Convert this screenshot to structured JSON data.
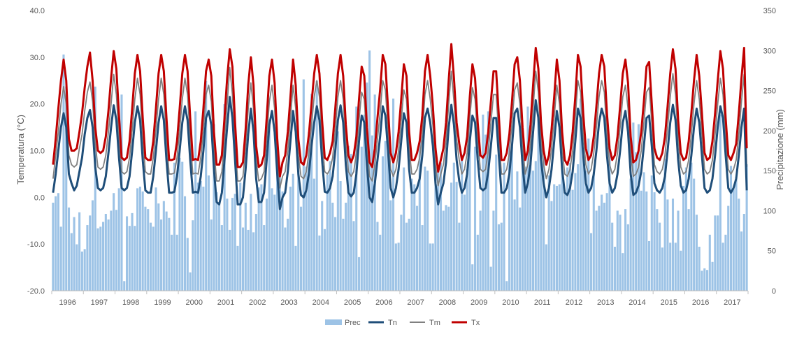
{
  "chart_data": {
    "type": "bar+line",
    "title": "",
    "y_left_label": "Temperatura (°C)",
    "y_right_label": "Precipitazione (mm)",
    "y_left_ticks": [
      "40.0",
      "30.0",
      "20.0",
      "10.0",
      "0.0",
      "-10.0",
      "-20.0"
    ],
    "y_left_range": [
      -20,
      40
    ],
    "y_right_ticks": [
      "350",
      "300",
      "250",
      "200",
      "150",
      "100",
      "50",
      "0"
    ],
    "y_right_range": [
      0,
      350
    ],
    "years": [
      "1996",
      "1997",
      "1998",
      "1999",
      "2000",
      "2001",
      "2002",
      "2003",
      "2004",
      "2005",
      "2006",
      "2007",
      "2008",
      "2009",
      "2010",
      "2011",
      "2012",
      "2013",
      "2014",
      "2015",
      "2016",
      "2017"
    ],
    "grid": false,
    "legend_position": "bottom",
    "legend": [
      {
        "label": "Prec",
        "kind": "bar",
        "color": "#9dc3e6"
      },
      {
        "label": "Tn",
        "kind": "line",
        "color": "#1f4e79"
      },
      {
        "label": "Tm",
        "kind": "line",
        "color": "#808080"
      },
      {
        "label": "Tx",
        "kind": "line",
        "color": "#c00000"
      }
    ],
    "series_colors": {
      "Prec": "#9dc3e6",
      "Tn": "#1f4e79",
      "Tm": "#808080",
      "Tx": "#c00000"
    },
    "series": [
      {
        "name": "Prec",
        "axis": "right",
        "monthly_values": [
          110,
          118,
          122,
          80,
          295,
          255,
          104,
          72,
          92,
          58,
          98,
          49,
          52,
          82,
          94,
          113,
          255,
          78,
          80,
          86,
          96,
          89,
          100,
          122,
          101,
          128,
          245,
          12,
          93,
          81,
          97,
          81,
          128,
          130,
          124,
          105,
          102,
          85,
          80,
          129,
          109,
          89,
          112,
          99,
          91,
          70,
          160,
          70,
          166,
          161,
          118,
          66,
          23,
          88,
          224,
          135,
          137,
          130,
          262,
          144,
          89,
          208,
          123,
          110,
          82,
          233,
          115,
          76,
          116,
          121,
          56,
          135,
          79,
          110,
          76,
          121,
          73,
          96,
          129,
          133,
          82,
          115,
          214,
          128,
          120,
          152,
          150,
          124,
          79,
          90,
          130,
          146,
          56,
          150,
          105,
          264,
          155,
          198,
          246,
          140,
          262,
          69,
          112,
          77,
          145,
          162,
          110,
          92,
          199,
          137,
          90,
          110,
          181,
          171,
          87,
          230,
          42,
          180,
          220,
          260,
          300,
          194,
          245,
          86,
          70,
          168,
          187,
          200,
          113,
          240,
          59,
          60,
          95,
          154,
          85,
          90,
          140,
          133,
          106,
          187,
          82,
          155,
          150,
          59,
          59,
          145,
          150,
          160,
          100,
          107,
          105,
          135,
          160,
          136,
          85,
          170,
          120,
          152,
          230,
          33,
          180,
          70,
          100,
          220,
          195,
          224,
          30,
          100,
          170,
          83,
          85,
          160,
          12,
          190,
          180,
          114,
          149,
          104,
          177,
          155,
          230,
          196,
          150,
          162,
          216,
          200,
          167,
          58,
          144,
          112,
          133,
          131,
          133,
          155,
          123,
          154,
          160,
          126,
          147,
          158,
          240,
          168,
          150,
          190,
          72,
          148,
          100,
          106,
          120,
          110,
          122,
          175,
          85,
          55,
          100,
          95,
          47,
          102,
          83,
          140,
          210,
          173,
          208,
          125,
          148,
          124,
          62,
          144,
          123,
          102,
          85,
          54,
          165,
          114,
          60,
          115,
          60,
          100,
          50,
          131,
          154,
          102,
          160,
          140,
          95,
          55,
          25,
          28,
          26,
          70,
          36,
          94,
          94,
          220,
          60,
          70,
          106,
          156,
          127,
          142,
          115,
          74,
          96,
          158
        ]
      },
      {
        "name": "Tn",
        "axis": "left",
        "values": [
          1.0,
          5.0,
          10.0,
          15.0,
          18.0,
          15.0,
          5.0,
          3.0,
          1.5,
          2.5,
          5.5,
          8.5,
          13.5,
          17.0,
          18.7,
          15.0,
          6.5,
          2.0,
          1.5,
          2.0,
          4.5,
          9.5,
          15.0,
          19.7,
          16.5,
          8.5,
          2.0,
          1.5,
          2.0,
          4.5,
          10.0,
          16.0,
          19.5,
          16.5,
          8.0,
          1.5,
          1.0,
          1.0,
          4.5,
          10.0,
          16.0,
          19.5,
          16.5,
          8.0,
          1.0,
          1.0,
          1.2,
          4.5,
          10.0,
          16.0,
          19.5,
          16.5,
          8.0,
          1.0,
          1.2,
          1.0,
          4.5,
          10.0,
          17.0,
          18.5,
          15.5,
          6.0,
          -1.0,
          -1.5,
          1.0,
          8.0,
          15.0,
          21.5,
          17.0,
          8.0,
          -1.5,
          -1.5,
          0.0,
          6.0,
          13.5,
          19.0,
          14.0,
          4.0,
          -1.0,
          -1.0,
          1.0,
          8.0,
          15.5,
          18.5,
          14.0,
          5.0,
          -2.5,
          0.0,
          1.0,
          5.5,
          12.0,
          18.5,
          14.0,
          5.0,
          0.5,
          0.0,
          1.5,
          5.0,
          11.0,
          16.0,
          19.5,
          16.5,
          8.0,
          1.2,
          1.0,
          2.0,
          4.5,
          10.0,
          16.5,
          19.7,
          16.0,
          7.0,
          1.0,
          0.2,
          1.0,
          5.0,
          12.0,
          17.5,
          16.0,
          7.0,
          0.0,
          -1.0,
          3.0,
          8.0,
          13.0,
          19.5,
          17.5,
          10.0,
          2.0,
          0.0,
          2.0,
          6.0,
          12.0,
          18.0,
          16.0,
          6.0,
          1.0,
          1.0,
          2.0,
          4.0,
          9.0,
          17.0,
          19.0,
          16.0,
          11.0,
          3.0,
          -1.5,
          1.0,
          3.0,
          7.5,
          15.0,
          19.8,
          15.5,
          8.0,
          3.5,
          1.0,
          2.0,
          5.0,
          12.0,
          17.5,
          16.0,
          8.0,
          2.0,
          1.5,
          2.0,
          5.5,
          11.0,
          17.0,
          17.0,
          9.0,
          1.0,
          1.0,
          2.0,
          5.0,
          11.0,
          18.0,
          19.0,
          15.0,
          7.0,
          1.0,
          3.0,
          7.0,
          14.0,
          20.8,
          17.0,
          8.0,
          3.0,
          0.0,
          2.0,
          6.0,
          12.0,
          18.5,
          15.0,
          6.0,
          1.0,
          0.5,
          2.0,
          5.5,
          12.0,
          19.0,
          17.0,
          9.0,
          3.0,
          1.0,
          2.0,
          5.0,
          10.0,
          16.0,
          19.0,
          17.0,
          9.0,
          3.0,
          1.0,
          2.0,
          5.0,
          10.0,
          16.0,
          18.5,
          14.0,
          5.0,
          0.5,
          1.0,
          2.5,
          5.5,
          11.0,
          17.0,
          17.5,
          11.0,
          3.0,
          1.5,
          1.0,
          2.0,
          4.5,
          10.0,
          16.0,
          19.8,
          16.5,
          8.0,
          2.5,
          1.0,
          1.5,
          4.0,
          9.0,
          15.0,
          19.0,
          16.0,
          9.0,
          2.0,
          1.0,
          1.5,
          4.0,
          9.0,
          15.0,
          19.5,
          17.0,
          9.0,
          2.0,
          1.0,
          2.0,
          4.0,
          9.0,
          15.0,
          19.0,
          1.5
        ]
      },
      {
        "name": "Tm",
        "axis": "left",
        "values": [
          4.0,
          9.0,
          14.0,
          20.0,
          23.7,
          20.0,
          9.0,
          7.0,
          6.5,
          7.0,
          10.5,
          13.5,
          18.5,
          22.5,
          24.7,
          20.5,
          11.5,
          6.5,
          6.0,
          6.5,
          9.0,
          14.0,
          20.0,
          26.3,
          22.0,
          13.0,
          5.5,
          5.0,
          5.5,
          8.5,
          14.5,
          21.0,
          25.5,
          22.0,
          13.0,
          5.5,
          5.0,
          5.0,
          8.5,
          14.5,
          21.0,
          25.5,
          22.0,
          12.5,
          5.0,
          5.0,
          5.2,
          8.5,
          14.5,
          21.0,
          25.5,
          22.0,
          12.5,
          5.0,
          5.2,
          5.0,
          8.5,
          14.5,
          22.0,
          24.0,
          20.5,
          10.5,
          3.5,
          3.5,
          5.5,
          12.5,
          20.0,
          27.8,
          22.0,
          12.0,
          3.5,
          3.5,
          4.5,
          10.5,
          19.0,
          24.5,
          19.0,
          8.0,
          3.5,
          4.0,
          5.5,
          12.5,
          20.5,
          24.0,
          19.0,
          9.0,
          2.0,
          4.5,
          5.5,
          10.0,
          17.0,
          24.0,
          19.0,
          9.0,
          4.5,
          4.0,
          5.5,
          9.5,
          15.5,
          21.5,
          25.0,
          21.5,
          12.5,
          5.5,
          5.0,
          6.0,
          8.5,
          14.5,
          21.5,
          25.0,
          21.0,
          11.5,
          5.5,
          4.5,
          5.5,
          9.5,
          16.5,
          22.5,
          21.0,
          11.5,
          4.5,
          3.5,
          7.0,
          12.5,
          18.0,
          25.0,
          23.0,
          14.5,
          6.0,
          4.5,
          6.0,
          10.0,
          16.5,
          23.0,
          21.0,
          10.5,
          5.0,
          5.0,
          6.0,
          8.5,
          13.5,
          22.0,
          25.0,
          21.0,
          15.5,
          7.0,
          2.5,
          5.0,
          7.0,
          12.0,
          20.0,
          27.0,
          20.5,
          12.5,
          8.0,
          5.0,
          6.0,
          9.5,
          17.0,
          23.5,
          21.0,
          12.5,
          6.0,
          5.5,
          6.0,
          10.0,
          16.0,
          22.0,
          22.0,
          13.5,
          5.0,
          5.0,
          6.0,
          9.5,
          16.0,
          23.0,
          24.5,
          20.0,
          11.5,
          5.0,
          7.0,
          11.5,
          19.0,
          27.0,
          22.5,
          12.5,
          7.0,
          4.0,
          6.0,
          10.5,
          17.0,
          24.0,
          20.0,
          10.5,
          5.0,
          4.5,
          6.0,
          10.0,
          17.0,
          25.0,
          22.5,
          13.5,
          7.0,
          5.0,
          6.0,
          9.5,
          15.0,
          21.5,
          25.0,
          22.5,
          13.5,
          7.0,
          5.0,
          6.0,
          9.5,
          15.0,
          21.5,
          24.0,
          19.0,
          9.5,
          4.5,
          5.0,
          6.5,
          10.0,
          16.0,
          22.5,
          23.5,
          16.0,
          7.0,
          5.5,
          5.0,
          6.0,
          9.0,
          15.0,
          21.5,
          26.5,
          22.0,
          12.5,
          6.5,
          5.0,
          5.5,
          8.0,
          13.5,
          20.0,
          25.0,
          21.0,
          13.5,
          6.0,
          5.0,
          5.5,
          8.0,
          13.5,
          20.0,
          25.5,
          22.0,
          13.0,
          6.0,
          5.0,
          6.0,
          8.0,
          13.5,
          20.5,
          26.3,
          6.5
        ]
      },
      {
        "name": "Tx",
        "axis": "left",
        "values": [
          7.0,
          12.5,
          19.0,
          25.0,
          29.5,
          25.0,
          12.5,
          10.0,
          10.0,
          10.5,
          14.0,
          18.0,
          23.5,
          28.0,
          31.0,
          25.0,
          15.0,
          10.0,
          9.5,
          10.0,
          13.0,
          18.5,
          25.5,
          31.3,
          27.5,
          17.5,
          8.5,
          8.0,
          8.5,
          12.0,
          19.0,
          26.5,
          30.5,
          27.0,
          17.0,
          8.5,
          8.0,
          8.0,
          12.0,
          19.0,
          26.5,
          30.5,
          27.0,
          17.0,
          8.0,
          8.0,
          8.2,
          12.0,
          19.0,
          26.5,
          30.5,
          27.0,
          17.0,
          8.0,
          8.2,
          8.0,
          12.0,
          19.0,
          27.0,
          29.5,
          26.0,
          14.0,
          7.0,
          7.0,
          9.0,
          17.0,
          25.5,
          31.7,
          28.0,
          16.0,
          6.5,
          6.5,
          7.5,
          14.5,
          24.0,
          30.0,
          24.0,
          11.0,
          6.5,
          7.0,
          9.0,
          17.0,
          26.0,
          29.5,
          24.5,
          12.5,
          4.5,
          7.5,
          9.0,
          14.0,
          21.5,
          29.5,
          24.0,
          12.5,
          7.5,
          7.0,
          9.0,
          13.5,
          20.0,
          26.5,
          30.5,
          26.5,
          16.5,
          8.5,
          8.0,
          9.5,
          12.0,
          19.0,
          26.5,
          30.5,
          26.0,
          15.5,
          9.0,
          7.5,
          9.0,
          13.0,
          21.0,
          28.0,
          26.0,
          15.0,
          7.5,
          6.5,
          10.5,
          17.0,
          23.0,
          30.5,
          28.5,
          19.0,
          9.5,
          7.5,
          9.5,
          14.0,
          21.0,
          28.5,
          26.0,
          14.0,
          8.0,
          8.0,
          9.5,
          12.0,
          17.5,
          27.0,
          30.5,
          26.0,
          19.5,
          10.5,
          5.5,
          8.0,
          10.5,
          16.0,
          25.0,
          32.8,
          25.5,
          16.0,
          11.5,
          8.0,
          9.5,
          13.0,
          21.5,
          28.5,
          25.5,
          16.0,
          9.0,
          8.5,
          9.5,
          14.0,
          20.5,
          27.0,
          27.0,
          17.5,
          8.0,
          8.0,
          9.5,
          13.5,
          20.5,
          28.5,
          30.0,
          25.0,
          15.0,
          8.0,
          10.0,
          15.5,
          24.0,
          32.0,
          27.5,
          16.0,
          10.0,
          7.0,
          9.0,
          14.5,
          21.5,
          29.5,
          25.0,
          14.0,
          8.0,
          7.0,
          9.0,
          14.0,
          21.5,
          30.5,
          28.0,
          18.0,
          10.5,
          8.0,
          9.0,
          13.0,
          19.5,
          26.5,
          30.5,
          28.0,
          18.0,
          10.5,
          8.0,
          9.0,
          13.0,
          19.5,
          26.5,
          29.5,
          24.5,
          13.0,
          7.5,
          8.0,
          10.0,
          14.0,
          20.5,
          28.0,
          29.0,
          20.0,
          10.5,
          8.5,
          8.0,
          9.5,
          13.0,
          19.5,
          26.5,
          31.7,
          27.5,
          16.5,
          9.5,
          8.0,
          8.5,
          12.0,
          18.0,
          25.0,
          30.5,
          26.0,
          18.0,
          9.5,
          8.0,
          8.5,
          12.0,
          18.0,
          25.0,
          31.3,
          27.5,
          17.0,
          9.0,
          8.0,
          9.5,
          11.5,
          18.0,
          25.5,
          32.0,
          10.5
        ]
      }
    ]
  }
}
